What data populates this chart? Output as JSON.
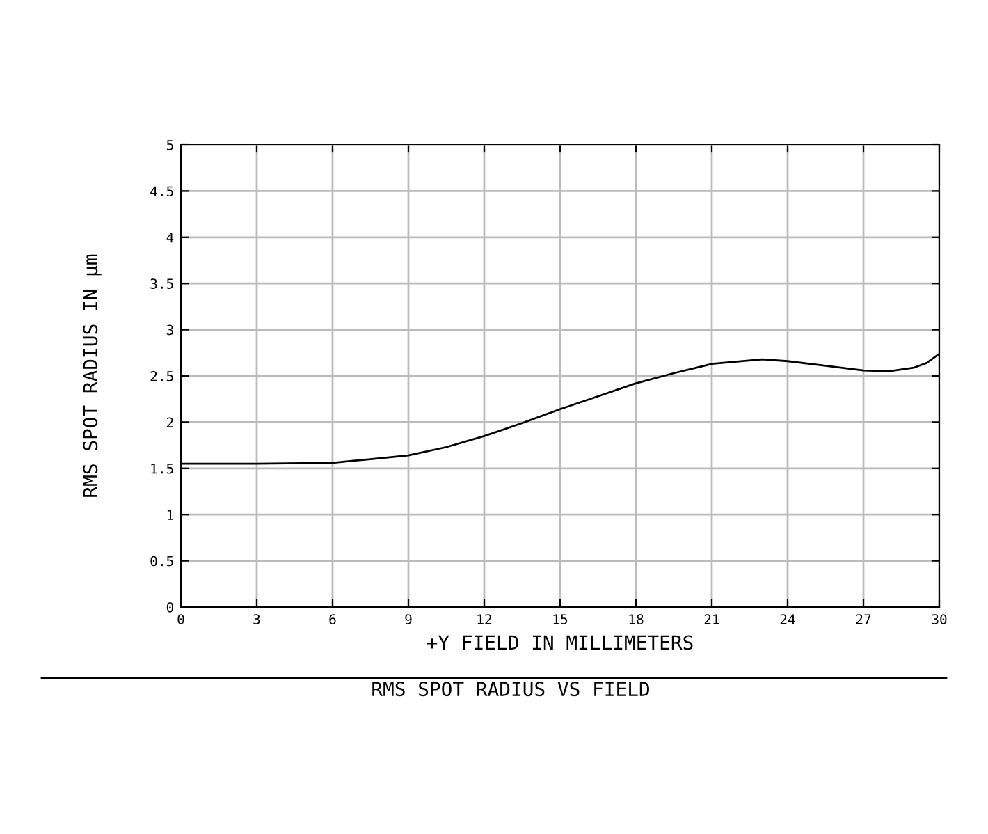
{
  "chart_data": {
    "type": "line",
    "title": "RMS SPOT RADIUS VS FIELD",
    "xlabel": "+Y FIELD IN MILLIMETERS",
    "ylabel": "RMS SPOT RADIUS IN µm",
    "series": [
      {
        "color": "#000000",
        "x": [
          0,
          3,
          6,
          7.5,
          9,
          10.5,
          12,
          13.5,
          15,
          16.5,
          18,
          19.5,
          21,
          23,
          24,
          25.5,
          27,
          28,
          29,
          29.5,
          30
        ],
        "values": [
          1.55,
          1.55,
          1.56,
          1.6,
          1.64,
          1.73,
          1.85,
          1.99,
          2.14,
          2.28,
          2.42,
          2.53,
          2.63,
          2.68,
          2.66,
          2.61,
          2.56,
          2.55,
          2.59,
          2.64,
          2.74
        ]
      }
    ],
    "xlim": [
      0,
      30
    ],
    "xticks": [
      0,
      3,
      6,
      9,
      12,
      15,
      18,
      21,
      24,
      27,
      30
    ],
    "ylim": [
      0,
      5
    ],
    "yticks": [
      0,
      0.5,
      1,
      1.5,
      2,
      2.5,
      3,
      3.5,
      4,
      4.5,
      5
    ],
    "grid": true,
    "marker": "none",
    "line_style": "solid"
  }
}
